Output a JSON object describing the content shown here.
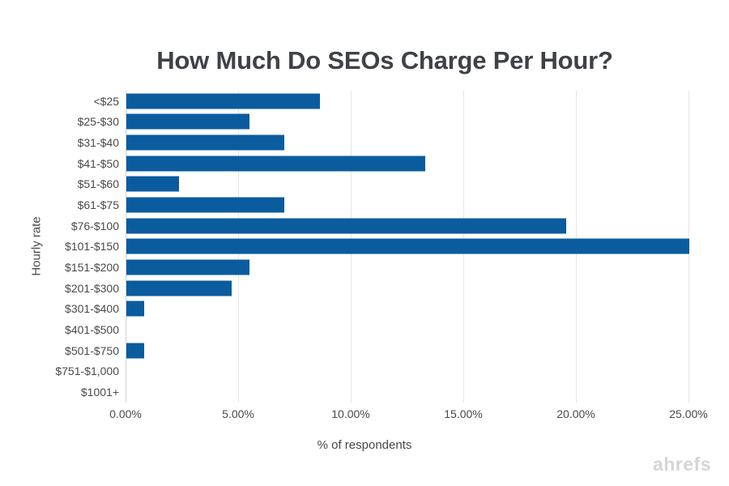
{
  "chart_data": {
    "type": "bar",
    "orientation": "horizontal",
    "title": "How Much Do SEOs Charge Per Hour?",
    "xlabel": "% of respondents",
    "ylabel": "Hourly rate",
    "categories": [
      "<$25",
      "$25-$30",
      "$31-$40",
      "$41-$50",
      "$51-$60",
      "$61-$75",
      "$76-$100",
      "$101-$150",
      "$151-$200",
      "$201-$300",
      "$301-$400",
      "$401-$500",
      "$501-$750",
      "$751-$1,000",
      "$1001+"
    ],
    "values": [
      8.59,
      5.47,
      7.03,
      13.28,
      2.34,
      7.03,
      19.53,
      25.0,
      5.47,
      4.69,
      0.78,
      0.0,
      0.78,
      0.0,
      0.0
    ],
    "xlim": [
      0,
      25
    ],
    "x_ticks": [
      {
        "value": 0,
        "label": "0.00%"
      },
      {
        "value": 5,
        "label": "5.00%"
      },
      {
        "value": 10,
        "label": "10.00%"
      },
      {
        "value": 15,
        "label": "15.00%"
      },
      {
        "value": 20,
        "label": "20.00%"
      },
      {
        "value": 25,
        "label": "25.00%"
      }
    ],
    "grid": true,
    "legend": "none",
    "bar_color": "#0b5c9e",
    "gridline_color": "#e6e6e6",
    "axis_line_color": "#d2d2d2",
    "title_color": "#3e4247",
    "label_color": "#4a4a4a"
  },
  "watermark": "ahrefs"
}
